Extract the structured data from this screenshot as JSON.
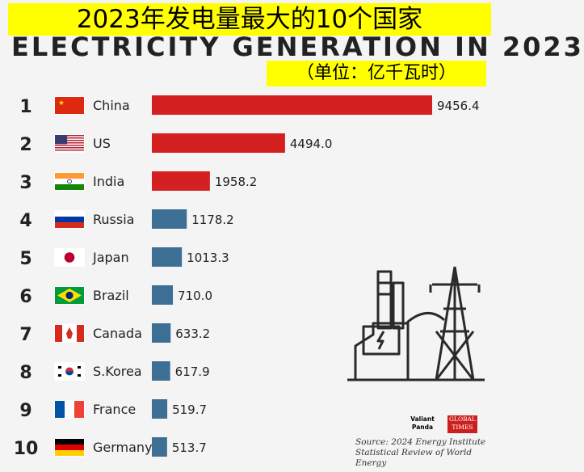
{
  "header": {
    "title": "2023年发电量最大的10个国家",
    "subtitle_en": "ELECTRICITY GENERATION IN 2023",
    "unit": "（单位：亿千瓦时）"
  },
  "chart_data": {
    "type": "bar",
    "orientation": "horizontal",
    "title": "2023年发电量最大的10个国家",
    "ranks": [
      "1",
      "2",
      "3",
      "4",
      "5",
      "6",
      "7",
      "8",
      "9",
      "10"
    ],
    "categories": [
      "China",
      "US",
      "India",
      "Russia",
      "Japan",
      "Brazil",
      "Canada",
      "S.Korea",
      "France",
      "Germany"
    ],
    "values": [
      9456.4,
      4494.0,
      1958.2,
      1178.2,
      1013.3,
      710.0,
      633.2,
      617.9,
      519.7,
      513.7
    ],
    "value_labels": [
      "9456.4",
      "4494.0",
      "1958.2",
      "1178.2",
      "1013.3",
      "710.0",
      "633.2",
      "617.9",
      "519.7",
      "513.7"
    ],
    "bar_colors": [
      "#d42020",
      "#d42020",
      "#d42020",
      "#3d6f95",
      "#3d6f95",
      "#3d6f95",
      "#3d6f95",
      "#3d6f95",
      "#3d6f95",
      "#3d6f95"
    ],
    "flags": [
      "china-flag",
      "us-flag",
      "india-flag",
      "russia-flag",
      "japan-flag",
      "brazil-flag",
      "canada-flag",
      "south-korea-flag",
      "france-flag",
      "germany-flag"
    ],
    "xlim": [
      0,
      9456.4
    ],
    "grid": false,
    "legend": "none"
  },
  "icons": {
    "power_plant": "power-plant-icon"
  },
  "branding": {
    "left_top": "Valiant",
    "left_bottom": "Panda",
    "right_top": "GLOBAL",
    "right_bottom": "TIMES"
  },
  "source": {
    "line1": "Source: 2024 Energy Institute",
    "line2": "Statistical Review of World Energy"
  }
}
